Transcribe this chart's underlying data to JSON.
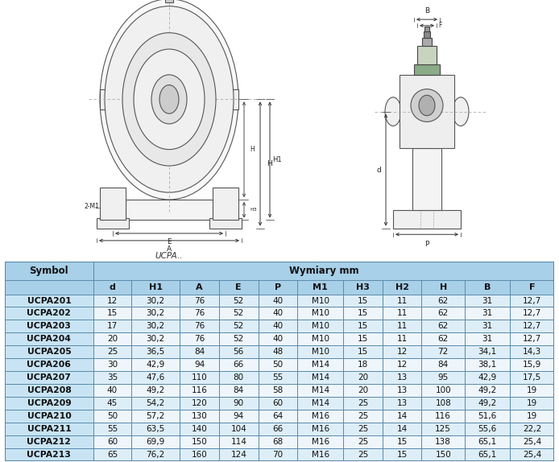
{
  "title_drawing": "UCPA..",
  "header_row1": [
    "Symbol",
    "Wymiary mm"
  ],
  "header_row2": [
    "",
    "d",
    "H1",
    "A",
    "E",
    "P",
    "M1",
    "H3",
    "H2",
    "H",
    "B",
    "F"
  ],
  "rows": [
    [
      "UCPA201",
      "12",
      "30,2",
      "76",
      "52",
      "40",
      "M10",
      "15",
      "11",
      "62",
      "31",
      "12,7"
    ],
    [
      "UCPA202",
      "15",
      "30,2",
      "76",
      "52",
      "40",
      "M10",
      "15",
      "11",
      "62",
      "31",
      "12,7"
    ],
    [
      "UCPA203",
      "17",
      "30,2",
      "76",
      "52",
      "40",
      "M10",
      "15",
      "11",
      "62",
      "31",
      "12,7"
    ],
    [
      "UCPA204",
      "20",
      "30,2",
      "76",
      "52",
      "40",
      "M10",
      "15",
      "11",
      "62",
      "31",
      "12,7"
    ],
    [
      "UCPA205",
      "25",
      "36,5",
      "84",
      "56",
      "48",
      "M10",
      "15",
      "12",
      "72",
      "34,1",
      "14,3"
    ],
    [
      "UCPA206",
      "30",
      "42,9",
      "94",
      "66",
      "50",
      "M14",
      "18",
      "12",
      "84",
      "38,1",
      "15,9"
    ],
    [
      "UCPA207",
      "35",
      "47,6",
      "110",
      "80",
      "55",
      "M14",
      "20",
      "13",
      "95",
      "42,9",
      "17,5"
    ],
    [
      "UCPA208",
      "40",
      "49,2",
      "116",
      "84",
      "58",
      "M14",
      "20",
      "13",
      "100",
      "49,2",
      "19"
    ],
    [
      "UCPA209",
      "45",
      "54,2",
      "120",
      "90",
      "60",
      "M14",
      "25",
      "13",
      "108",
      "49,2",
      "19"
    ],
    [
      "UCPA210",
      "50",
      "57,2",
      "130",
      "94",
      "64",
      "M16",
      "25",
      "14",
      "116",
      "51,6",
      "19"
    ],
    [
      "UCPA211",
      "55",
      "63,5",
      "140",
      "104",
      "66",
      "M16",
      "25",
      "14",
      "125",
      "55,6",
      "22,2"
    ],
    [
      "UCPA212",
      "60",
      "69,9",
      "150",
      "114",
      "68",
      "M16",
      "25",
      "15",
      "138",
      "65,1",
      "25,4"
    ],
    [
      "UCPA213",
      "65",
      "76,2",
      "160",
      "124",
      "70",
      "M16",
      "25",
      "15",
      "150",
      "65,1",
      "25,4"
    ]
  ],
  "header_bg": "#a8d0e8",
  "row_bg_even": "#ddeef8",
  "row_bg_odd": "#eef6fc",
  "symbol_bg": "#c8e4f4",
  "border_color": "#5a8aaa",
  "fig_bg": "#ffffff",
  "lc": "#555555",
  "lc_dark": "#333333",
  "lc_light": "#888888"
}
